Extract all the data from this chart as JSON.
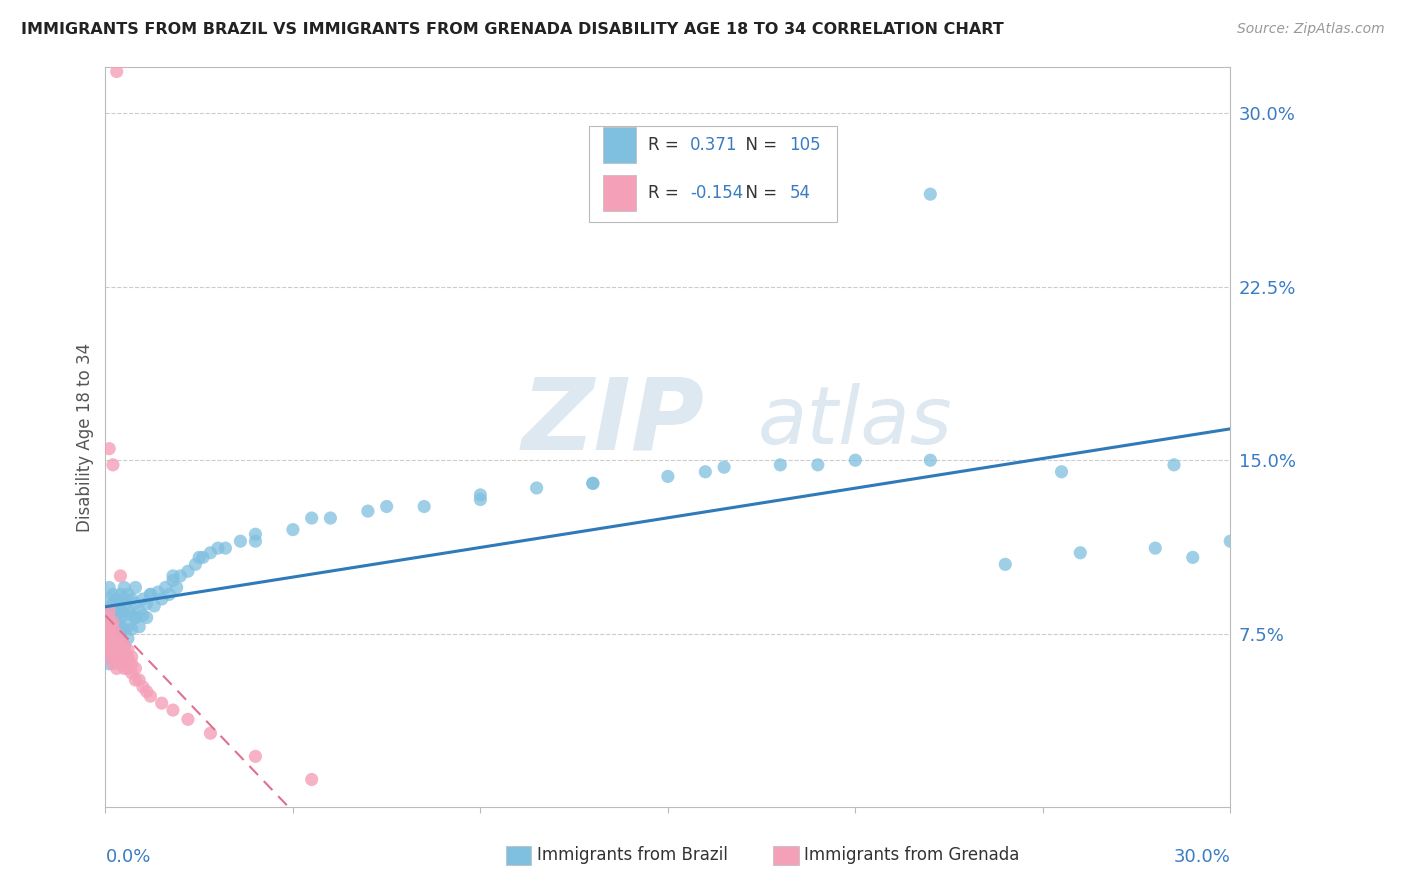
{
  "title": "IMMIGRANTS FROM BRAZIL VS IMMIGRANTS FROM GRENADA DISABILITY AGE 18 TO 34 CORRELATION CHART",
  "source": "Source: ZipAtlas.com",
  "ylabel": "Disability Age 18 to 34",
  "ytick_labels": [
    "7.5%",
    "15.0%",
    "22.5%",
    "30.0%"
  ],
  "ytick_values": [
    0.075,
    0.15,
    0.225,
    0.3
  ],
  "xlim": [
    0.0,
    0.3
  ],
  "ylim": [
    0.0,
    0.32
  ],
  "legend_brazil_R": "0.371",
  "legend_brazil_N": "105",
  "legend_grenada_R": "-0.154",
  "legend_grenada_N": "54",
  "brazil_color": "#7fbfdf",
  "grenada_color": "#f4a0b8",
  "brazil_trend_color": "#2f7ab9",
  "grenada_trend_color": "#e07090",
  "legend_label_brazil": "Immigrants from Brazil",
  "legend_label_grenada": "Immigrants from Grenada",
  "brazil_x": [
    0.001,
    0.001,
    0.001,
    0.001,
    0.001,
    0.001,
    0.001,
    0.001,
    0.001,
    0.001,
    0.002,
    0.002,
    0.002,
    0.002,
    0.002,
    0.002,
    0.002,
    0.002,
    0.002,
    0.002,
    0.003,
    0.003,
    0.003,
    0.003,
    0.003,
    0.003,
    0.003,
    0.003,
    0.004,
    0.004,
    0.004,
    0.004,
    0.004,
    0.004,
    0.004,
    0.005,
    0.005,
    0.005,
    0.005,
    0.005,
    0.005,
    0.006,
    0.006,
    0.006,
    0.006,
    0.007,
    0.007,
    0.007,
    0.008,
    0.008,
    0.008,
    0.009,
    0.009,
    0.01,
    0.01,
    0.011,
    0.011,
    0.012,
    0.013,
    0.014,
    0.015,
    0.016,
    0.017,
    0.018,
    0.019,
    0.02,
    0.022,
    0.024,
    0.026,
    0.028,
    0.032,
    0.036,
    0.04,
    0.05,
    0.06,
    0.07,
    0.085,
    0.1,
    0.115,
    0.13,
    0.15,
    0.165,
    0.18,
    0.2,
    0.22,
    0.24,
    0.26,
    0.28,
    0.29,
    0.3,
    0.008,
    0.012,
    0.018,
    0.025,
    0.03,
    0.04,
    0.055,
    0.075,
    0.1,
    0.13,
    0.16,
    0.19,
    0.22,
    0.255,
    0.285
  ],
  "brazil_y": [
    0.09,
    0.083,
    0.078,
    0.072,
    0.068,
    0.095,
    0.062,
    0.085,
    0.075,
    0.065,
    0.088,
    0.082,
    0.076,
    0.07,
    0.092,
    0.065,
    0.08,
    0.073,
    0.085,
    0.068,
    0.09,
    0.078,
    0.083,
    0.072,
    0.087,
    0.065,
    0.075,
    0.08,
    0.088,
    0.082,
    0.075,
    0.092,
    0.068,
    0.078,
    0.085,
    0.09,
    0.083,
    0.077,
    0.095,
    0.07,
    0.087,
    0.085,
    0.078,
    0.092,
    0.073,
    0.083,
    0.09,
    0.077,
    0.088,
    0.082,
    0.095,
    0.085,
    0.078,
    0.09,
    0.083,
    0.088,
    0.082,
    0.092,
    0.087,
    0.093,
    0.09,
    0.095,
    0.092,
    0.098,
    0.095,
    0.1,
    0.102,
    0.105,
    0.108,
    0.11,
    0.112,
    0.115,
    0.115,
    0.12,
    0.125,
    0.128,
    0.13,
    0.133,
    0.138,
    0.14,
    0.143,
    0.147,
    0.148,
    0.15,
    0.265,
    0.105,
    0.11,
    0.112,
    0.108,
    0.115,
    0.082,
    0.092,
    0.1,
    0.108,
    0.112,
    0.118,
    0.125,
    0.13,
    0.135,
    0.14,
    0.145,
    0.148,
    0.15,
    0.145,
    0.148
  ],
  "grenada_x": [
    0.001,
    0.001,
    0.001,
    0.001,
    0.001,
    0.001,
    0.001,
    0.001,
    0.002,
    0.002,
    0.002,
    0.002,
    0.002,
    0.002,
    0.002,
    0.002,
    0.003,
    0.003,
    0.003,
    0.003,
    0.003,
    0.003,
    0.004,
    0.004,
    0.004,
    0.004,
    0.004,
    0.005,
    0.005,
    0.005,
    0.005,
    0.005,
    0.006,
    0.006,
    0.006,
    0.007,
    0.007,
    0.007,
    0.008,
    0.008,
    0.009,
    0.01,
    0.011,
    0.012,
    0.015,
    0.018,
    0.022,
    0.028,
    0.04,
    0.055,
    0.001,
    0.002,
    0.003,
    0.004
  ],
  "grenada_y": [
    0.078,
    0.082,
    0.075,
    0.068,
    0.085,
    0.072,
    0.065,
    0.07,
    0.075,
    0.068,
    0.08,
    0.072,
    0.065,
    0.078,
    0.062,
    0.07,
    0.068,
    0.072,
    0.065,
    0.075,
    0.06,
    0.07,
    0.065,
    0.07,
    0.068,
    0.062,
    0.072,
    0.062,
    0.068,
    0.065,
    0.07,
    0.06,
    0.06,
    0.065,
    0.068,
    0.058,
    0.062,
    0.065,
    0.055,
    0.06,
    0.055,
    0.052,
    0.05,
    0.048,
    0.045,
    0.042,
    0.038,
    0.032,
    0.022,
    0.012,
    0.155,
    0.148,
    0.318,
    0.1
  ]
}
